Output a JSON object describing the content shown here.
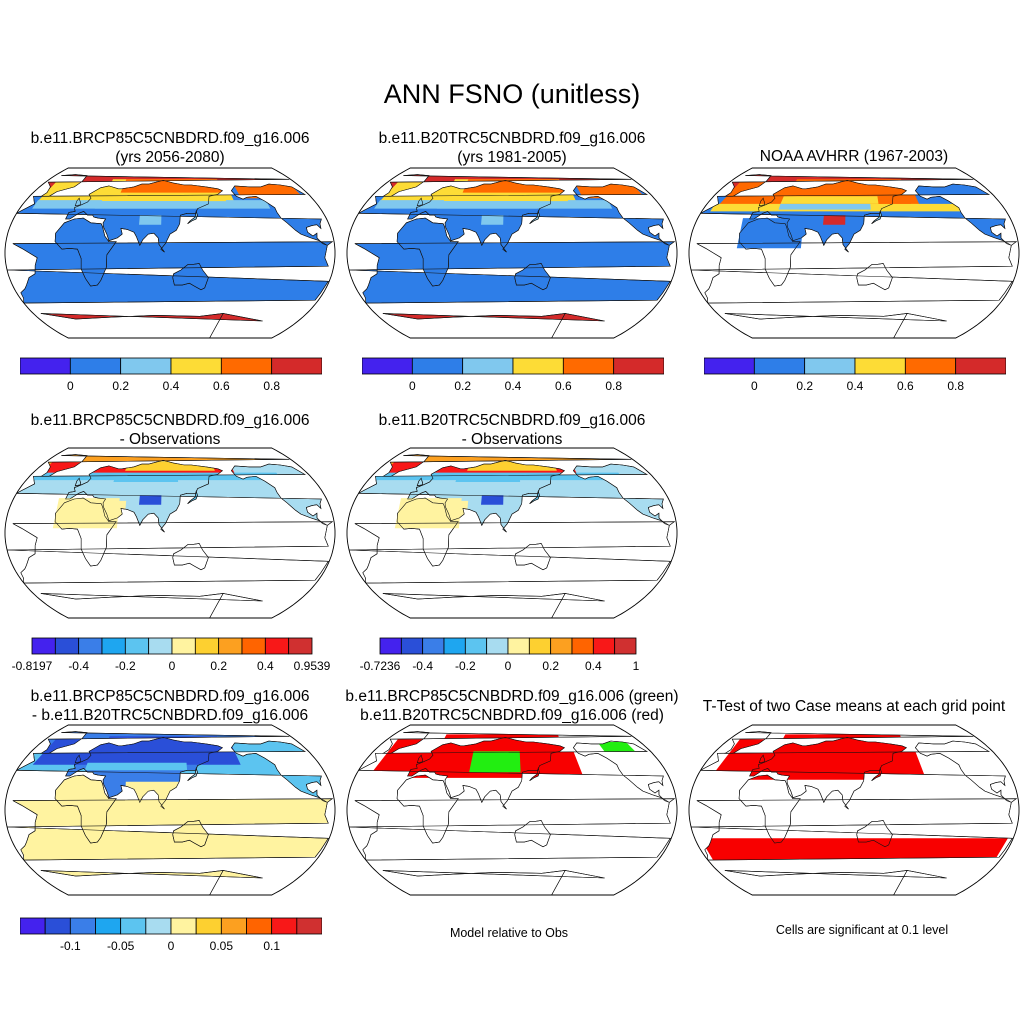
{
  "title": "ANN FSNO (unitless)",
  "panels": [
    {
      "id": "p1",
      "title1": "b.e11.BRCP85C5CNBDRD.f09_g16.006",
      "title2": "(yrs 2056-2080)",
      "variant": "model"
    },
    {
      "id": "p2",
      "title1": "b.e11.B20TRC5CNBDRD.f09_g16.006",
      "title2": "(yrs 1981-2005)",
      "variant": "model"
    },
    {
      "id": "p3",
      "title1": "NOAA AVHRR (1967-2003)",
      "title2": "",
      "variant": "obs"
    },
    {
      "id": "p4",
      "title1": "b.e11.BRCP85C5CNBDRD.f09_g16.006",
      "title2": "- Observations",
      "variant": "diff"
    },
    {
      "id": "p5",
      "title1": "b.e11.B20TRC5CNBDRD.f09_g16.006",
      "title2": "- Observations",
      "variant": "diff"
    },
    {
      "id": "p6",
      "title1": "b.e11.BRCP85C5CNBDRD.f09_g16.006",
      "title2": "- b.e11.B20TRC5CNBDRD.f09_g16.006",
      "variant": "casediff"
    },
    {
      "id": "p7",
      "title1": "b.e11.BRCP85C5CNBDRD.f09_g16.006 (green)",
      "title2": "b.e11.B20TRC5CNBDRD.f09_g16.006 (red)",
      "variant": "greenred"
    },
    {
      "id": "p8",
      "title1": "T-Test of two Case means at each grid point",
      "title2": "",
      "variant": "ttest"
    }
  ],
  "colorbars": [
    {
      "id": "cb1",
      "colors": [
        "#4422ee",
        "#2e7ee8",
        "#80c8ee",
        "#fddc36",
        "#ff6a00",
        "#d42a2a"
      ],
      "labels": [
        "0",
        "0.2",
        "0.4",
        "0.6",
        "0.8"
      ],
      "label_mode": "internal"
    },
    {
      "id": "cb2",
      "colors": [
        "#4422ee",
        "#2e7ee8",
        "#80c8ee",
        "#fddc36",
        "#ff6a00",
        "#d42a2a"
      ],
      "labels": [
        "0",
        "0.2",
        "0.4",
        "0.6",
        "0.8"
      ],
      "label_mode": "internal"
    },
    {
      "id": "cb3",
      "colors": [
        "#4422ee",
        "#2e7ee8",
        "#80c8ee",
        "#fddc36",
        "#ff6a00",
        "#d42a2a"
      ],
      "labels": [
        "0",
        "0.2",
        "0.4",
        "0.6",
        "0.8"
      ],
      "label_mode": "internal"
    },
    {
      "id": "cb4",
      "colors": [
        "#4422ee",
        "#2a4fd8",
        "#3a7ee8",
        "#1ea6f0",
        "#5cc4f0",
        "#a8dcf0",
        "#fff3a0",
        "#fdd030",
        "#fca020",
        "#ff6400",
        "#f81818",
        "#d03030"
      ],
      "labels": [
        "-0.8197",
        "-0.4",
        "-0.2",
        "0",
        "0.2",
        "0.4",
        "0.9539"
      ],
      "label_mode": "ends"
    },
    {
      "id": "cb5",
      "colors": [
        "#4422ee",
        "#2a4fd8",
        "#3a7ee8",
        "#1ea6f0",
        "#5cc4f0",
        "#a8dcf0",
        "#fff3a0",
        "#fdd030",
        "#fca020",
        "#ff6400",
        "#f81818",
        "#d03030"
      ],
      "labels": [
        "-0.7236",
        "-0.4",
        "-0.2",
        "0",
        "0.2",
        "0.4",
        "1"
      ],
      "label_mode": "ends"
    },
    {
      "id": "cb6",
      "colors": [
        "#4422ee",
        "#2a4fd8",
        "#3a7ee8",
        "#1ea6f0",
        "#5cc4f0",
        "#a8dcf0",
        "#fff3a0",
        "#fdd030",
        "#fca020",
        "#ff6400",
        "#f81818",
        "#d03030"
      ],
      "labels": [
        "-0.1",
        "-0.05",
        "0",
        "0.05",
        "0.1"
      ],
      "label_mode": "internal"
    }
  ],
  "notes": {
    "greenred": "Model relative to Obs",
    "ttest": "Cells are significant at 0.1 level"
  }
}
